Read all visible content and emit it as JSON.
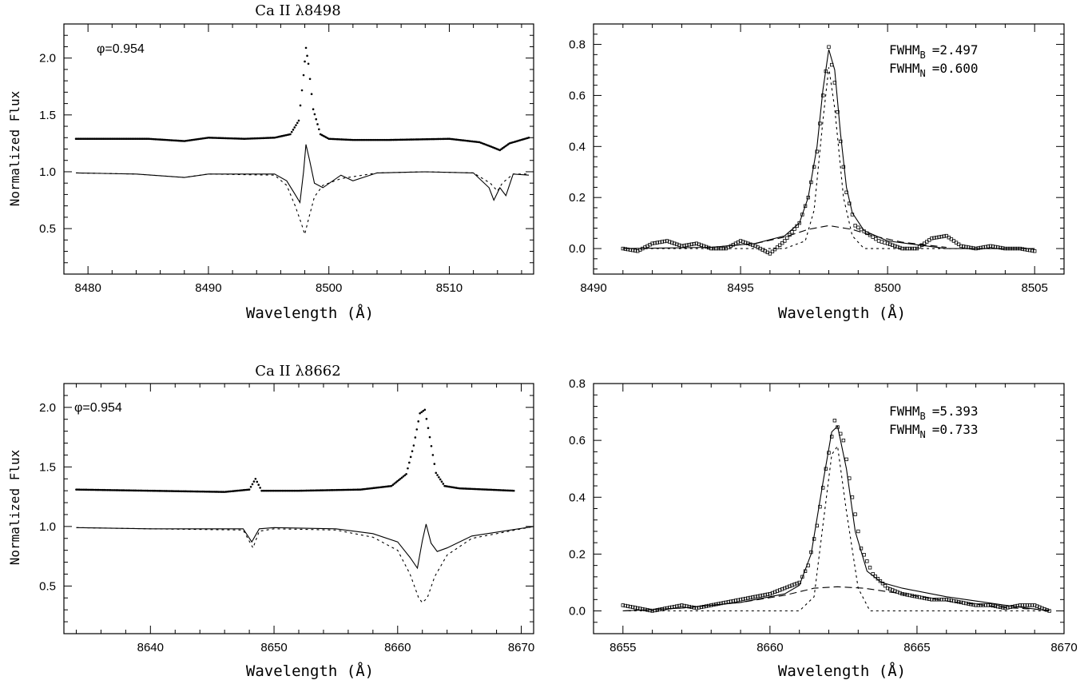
{
  "figure": {
    "background": "#ffffff",
    "ink": "#000000"
  },
  "chart_data": [
    {
      "id": "tl",
      "type": "line",
      "title": "Ca II λ8498",
      "xlabel": "Wavelength (Å)",
      "ylabel": "Normalized Flux",
      "xlim": [
        8478,
        8517
      ],
      "ylim": [
        0.1,
        2.3
      ],
      "xticks": [
        8480,
        8490,
        8500,
        8510
      ],
      "yticks": [
        0.5,
        1.0,
        1.5,
        2.0
      ],
      "xtick_labels": [
        "8480",
        "8490",
        "8500",
        "8510"
      ],
      "ytick_labels": [
        "0.5",
        "1.0",
        "1.5",
        "2.0"
      ],
      "annotation": "φ=0.954",
      "grid": false,
      "series": [
        {
          "style": "dots",
          "x": [
            8479,
            8485,
            8488,
            8490,
            8493,
            8495.5,
            8496.8,
            8497.5,
            8497.9,
            8498.1,
            8498.3,
            8498.7,
            8499.3,
            8500,
            8502,
            8505,
            8510,
            8512.5,
            8513.5,
            8514.2,
            8515,
            8516.6
          ],
          "y": [
            1.29,
            1.29,
            1.27,
            1.3,
            1.29,
            1.3,
            1.33,
            1.45,
            1.85,
            2.09,
            1.95,
            1.55,
            1.33,
            1.29,
            1.28,
            1.28,
            1.29,
            1.26,
            1.22,
            1.19,
            1.25,
            1.3
          ]
        },
        {
          "style": "solid",
          "x": [
            8479,
            8484,
            8488,
            8490,
            8495.5,
            8496.5,
            8497.2,
            8497.6,
            8497.9,
            8498.1,
            8498.4,
            8498.8,
            8499.5,
            8501,
            8502,
            8504,
            8508,
            8512,
            8513.3,
            8513.7,
            8514.2,
            8514.7,
            8515.3,
            8516.6
          ],
          "y": [
            0.99,
            0.98,
            0.95,
            0.98,
            0.98,
            0.92,
            0.8,
            0.73,
            1.0,
            1.24,
            1.1,
            0.9,
            0.86,
            0.97,
            0.92,
            0.99,
            1.0,
            0.99,
            0.86,
            0.75,
            0.86,
            0.79,
            0.98,
            0.97
          ]
        },
        {
          "style": "dashed",
          "x": [
            8479,
            8484,
            8488,
            8490,
            8495.5,
            8496.5,
            8497.2,
            8497.7,
            8498.0,
            8498.3,
            8498.8,
            8499.5,
            8501,
            8504,
            8508,
            8512,
            8513.4,
            8514.0,
            8514.4,
            8515.3,
            8516.6
          ],
          "y": [
            0.99,
            0.98,
            0.95,
            0.98,
            0.97,
            0.88,
            0.7,
            0.55,
            0.45,
            0.58,
            0.78,
            0.88,
            0.94,
            0.99,
            1.0,
            0.99,
            0.9,
            0.83,
            0.9,
            0.98,
            0.98
          ]
        }
      ]
    },
    {
      "id": "tr",
      "type": "line",
      "title": "",
      "xlabel": "Wavelength (Å)",
      "ylabel": "",
      "xlim": [
        8490,
        8506
      ],
      "ylim": [
        -0.1,
        0.88
      ],
      "xticks": [
        8490,
        8495,
        8500,
        8505
      ],
      "yticks": [
        0.0,
        0.2,
        0.4,
        0.6,
        0.8
      ],
      "xtick_labels": [
        "8490",
        "8495",
        "8500",
        "8505"
      ],
      "ytick_labels": [
        "0.0",
        "0.2",
        "0.4",
        "0.6",
        "0.8"
      ],
      "annotation_lines": [
        "FWHM",
        "B",
        "=2.497",
        "FWHM",
        "N",
        "=0.600"
      ],
      "grid": false,
      "series": [
        {
          "style": "squares",
          "x": [
            8491,
            8491.5,
            8492,
            8492.5,
            8493,
            8493.5,
            8494,
            8494.5,
            8495,
            8495.5,
            8496,
            8496.5,
            8497,
            8497.3,
            8497.6,
            8497.8,
            8498.0,
            8498.2,
            8498.4,
            8498.6,
            8498.9,
            8499.3,
            8499.7,
            8500,
            8500.5,
            8501,
            8501.5,
            8502,
            8502.5,
            8503,
            8503.5,
            8504,
            8504.5,
            8505
          ],
          "y": [
            0.0,
            -0.01,
            0.02,
            0.03,
            0.01,
            0.02,
            0.0,
            0.0,
            0.03,
            0.01,
            -0.02,
            0.03,
            0.1,
            0.2,
            0.38,
            0.6,
            0.79,
            0.65,
            0.42,
            0.22,
            0.09,
            0.06,
            0.03,
            0.02,
            0.0,
            0.0,
            0.04,
            0.05,
            0.01,
            0.0,
            0.01,
            0.0,
            0.0,
            -0.01
          ]
        },
        {
          "style": "solid",
          "x": [
            8491,
            8494,
            8495.5,
            8496.5,
            8497,
            8497.3,
            8497.6,
            8497.8,
            8498.0,
            8498.2,
            8498.4,
            8498.6,
            8498.8,
            8499.2,
            8500,
            8502,
            8505
          ],
          "y": [
            0.0,
            0.005,
            0.02,
            0.05,
            0.1,
            0.2,
            0.4,
            0.62,
            0.78,
            0.7,
            0.45,
            0.24,
            0.14,
            0.07,
            0.03,
            0.0,
            0.0
          ]
        },
        {
          "style": "dashed",
          "x": [
            8491,
            8496.5,
            8497.2,
            8497.5,
            8497.8,
            8498.0,
            8498.2,
            8498.5,
            8498.8,
            8499.2,
            8505
          ],
          "y": [
            0.0,
            0.0,
            0.03,
            0.15,
            0.5,
            0.71,
            0.55,
            0.2,
            0.05,
            0.0,
            0.0
          ]
        },
        {
          "style": "longdash",
          "x": [
            8494,
            8495.5,
            8496.5,
            8497.3,
            8498.0,
            8498.8,
            8499.5,
            8500.5,
            8502
          ],
          "y": [
            0.005,
            0.02,
            0.045,
            0.075,
            0.09,
            0.075,
            0.05,
            0.025,
            0.005
          ]
        }
      ]
    },
    {
      "id": "bl",
      "type": "line",
      "title": "Ca II λ8662",
      "xlabel": "Wavelength (Å)",
      "ylabel": "Normalized Flux",
      "xlim": [
        8633,
        8671
      ],
      "ylim": [
        0.1,
        2.2
      ],
      "xticks": [
        8640,
        8650,
        8660,
        8670
      ],
      "yticks": [
        0.5,
        1.0,
        1.5,
        2.0
      ],
      "xtick_labels": [
        "8640",
        "8650",
        "8660",
        "8670"
      ],
      "ytick_labels": [
        "0.5",
        "1.0",
        "1.5",
        "2.0"
      ],
      "annotation": "φ=0.954",
      "grid": false,
      "series": [
        {
          "style": "dots",
          "x": [
            8634,
            8640,
            8646,
            8648.0,
            8648.5,
            8649.0,
            8652,
            8657,
            8659.5,
            8660.7,
            8661.3,
            8661.8,
            8662.2,
            8662.6,
            8663.1,
            8663.8,
            8665,
            8669.4
          ],
          "y": [
            1.31,
            1.3,
            1.29,
            1.31,
            1.4,
            1.3,
            1.3,
            1.31,
            1.34,
            1.44,
            1.68,
            1.95,
            1.98,
            1.75,
            1.45,
            1.34,
            1.32,
            1.3
          ]
        },
        {
          "style": "solid",
          "x": [
            8634,
            8640,
            8647.5,
            8648.2,
            8648.8,
            8650,
            8655,
            8658,
            8660,
            8661.0,
            8661.6,
            8662.0,
            8662.3,
            8662.7,
            8663.2,
            8664,
            8666,
            8671
          ],
          "y": [
            0.99,
            0.98,
            0.98,
            0.87,
            0.98,
            0.99,
            0.98,
            0.94,
            0.87,
            0.74,
            0.65,
            0.88,
            1.02,
            0.86,
            0.79,
            0.82,
            0.92,
            1.0
          ]
        },
        {
          "style": "dashed",
          "x": [
            8634,
            8640,
            8647.5,
            8648.3,
            8648.8,
            8650,
            8655,
            8658,
            8660,
            8661.0,
            8661.7,
            8662.0,
            8662.4,
            8663.0,
            8664,
            8666,
            8671
          ],
          "y": [
            0.99,
            0.98,
            0.97,
            0.82,
            0.96,
            0.98,
            0.97,
            0.91,
            0.8,
            0.6,
            0.4,
            0.36,
            0.4,
            0.58,
            0.76,
            0.9,
            1.0
          ]
        }
      ]
    },
    {
      "id": "br",
      "type": "line",
      "title": "",
      "xlabel": "Wavelength (Å)",
      "ylabel": "",
      "xlim": [
        8654,
        8670
      ],
      "ylim": [
        -0.08,
        0.8
      ],
      "xticks": [
        8655,
        8660,
        8665,
        8670
      ],
      "yticks": [
        0.0,
        0.2,
        0.4,
        0.6,
        0.8
      ],
      "xtick_labels": [
        "8655",
        "8660",
        "8665",
        "8670"
      ],
      "ytick_labels": [
        "0.0",
        "0.2",
        "0.4",
        "0.6",
        "0.8"
      ],
      "annotation_lines": [
        "FWHM",
        "B",
        "=5.393",
        "FWHM",
        "N",
        "=0.733"
      ],
      "grid": false,
      "series": [
        {
          "style": "squares",
          "x": [
            8655,
            8655.5,
            8656,
            8656.5,
            8657,
            8657.5,
            8658,
            8658.5,
            8659,
            8659.5,
            8660,
            8660.5,
            8661,
            8661.3,
            8661.6,
            8661.9,
            8662.2,
            8662.5,
            8662.8,
            8663.1,
            8663.5,
            8664,
            8664.5,
            8665,
            8665.5,
            8666,
            8666.5,
            8667,
            8667.5,
            8668,
            8668.5,
            8669,
            8669.5
          ],
          "y": [
            0.02,
            0.01,
            0.0,
            0.01,
            0.02,
            0.01,
            0.02,
            0.03,
            0.04,
            0.05,
            0.06,
            0.08,
            0.1,
            0.16,
            0.3,
            0.5,
            0.67,
            0.6,
            0.4,
            0.22,
            0.13,
            0.08,
            0.06,
            0.05,
            0.04,
            0.04,
            0.03,
            0.02,
            0.02,
            0.01,
            0.02,
            0.02,
            0.0
          ]
        },
        {
          "style": "solid",
          "x": [
            8655,
            8657,
            8659,
            8660.5,
            8661.0,
            8661.4,
            8661.8,
            8662.1,
            8662.3,
            8662.6,
            8662.9,
            8663.3,
            8663.8,
            8664.5,
            8666,
            8668,
            8669.5
          ],
          "y": [
            0.0,
            0.01,
            0.03,
            0.06,
            0.09,
            0.2,
            0.45,
            0.63,
            0.65,
            0.5,
            0.28,
            0.14,
            0.1,
            0.08,
            0.05,
            0.02,
            0.0
          ]
        },
        {
          "style": "dashed",
          "x": [
            8655,
            8661.0,
            8661.5,
            8661.8,
            8662.1,
            8662.3,
            8662.6,
            8663.0,
            8663.4,
            8669.5
          ],
          "y": [
            0.0,
            0.0,
            0.05,
            0.3,
            0.55,
            0.58,
            0.35,
            0.08,
            0.0,
            0.0
          ]
        },
        {
          "style": "longdash",
          "x": [
            8655,
            8657,
            8659,
            8660.5,
            8661.5,
            8662.3,
            8663.2,
            8664.5,
            8666,
            8668,
            8669.5
          ],
          "y": [
            0.0,
            0.01,
            0.03,
            0.055,
            0.08,
            0.085,
            0.08,
            0.06,
            0.035,
            0.012,
            0.003
          ]
        }
      ]
    }
  ]
}
